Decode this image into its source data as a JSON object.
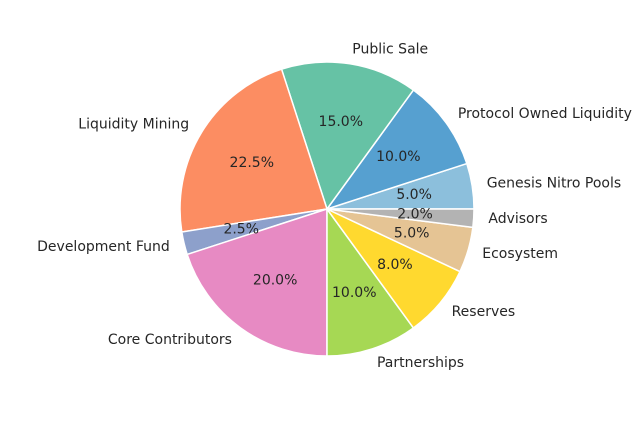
{
  "chart_data": {
    "type": "pie",
    "slices": [
      {
        "label": "Genesis Nitro Pools",
        "value": 5.0,
        "pct_text": "5.0%",
        "color": "#8cbfdc"
      },
      {
        "label": "Protocol Owned Liquidity",
        "value": 10.0,
        "pct_text": "10.0%",
        "color": "#56a0d0"
      },
      {
        "label": "Public Sale",
        "value": 15.0,
        "pct_text": "15.0%",
        "color": "#66c2a5"
      },
      {
        "label": "Liquidity Mining",
        "value": 22.5,
        "pct_text": "22.5%",
        "color": "#fc8d62"
      },
      {
        "label": "Development Fund",
        "value": 2.5,
        "pct_text": "2.5%",
        "color": "#8da0cb"
      },
      {
        "label": "Core Contributors",
        "value": 20.0,
        "pct_text": "20.0%",
        "color": "#e78ac3"
      },
      {
        "label": "Partnerships",
        "value": 10.0,
        "pct_text": "10.0%",
        "color": "#a6d854"
      },
      {
        "label": "Reserves",
        "value": 8.0,
        "pct_text": "8.0%",
        "color": "#ffd92f"
      },
      {
        "label": "Ecosystem",
        "value": 5.0,
        "pct_text": "5.0%",
        "color": "#e5c494"
      },
      {
        "label": "Advisors",
        "value": 2.0,
        "pct_text": "2.0%",
        "color": "#b3b3b3"
      }
    ],
    "start_angle_deg": 0,
    "direction": "counterclockwise",
    "title": ""
  }
}
